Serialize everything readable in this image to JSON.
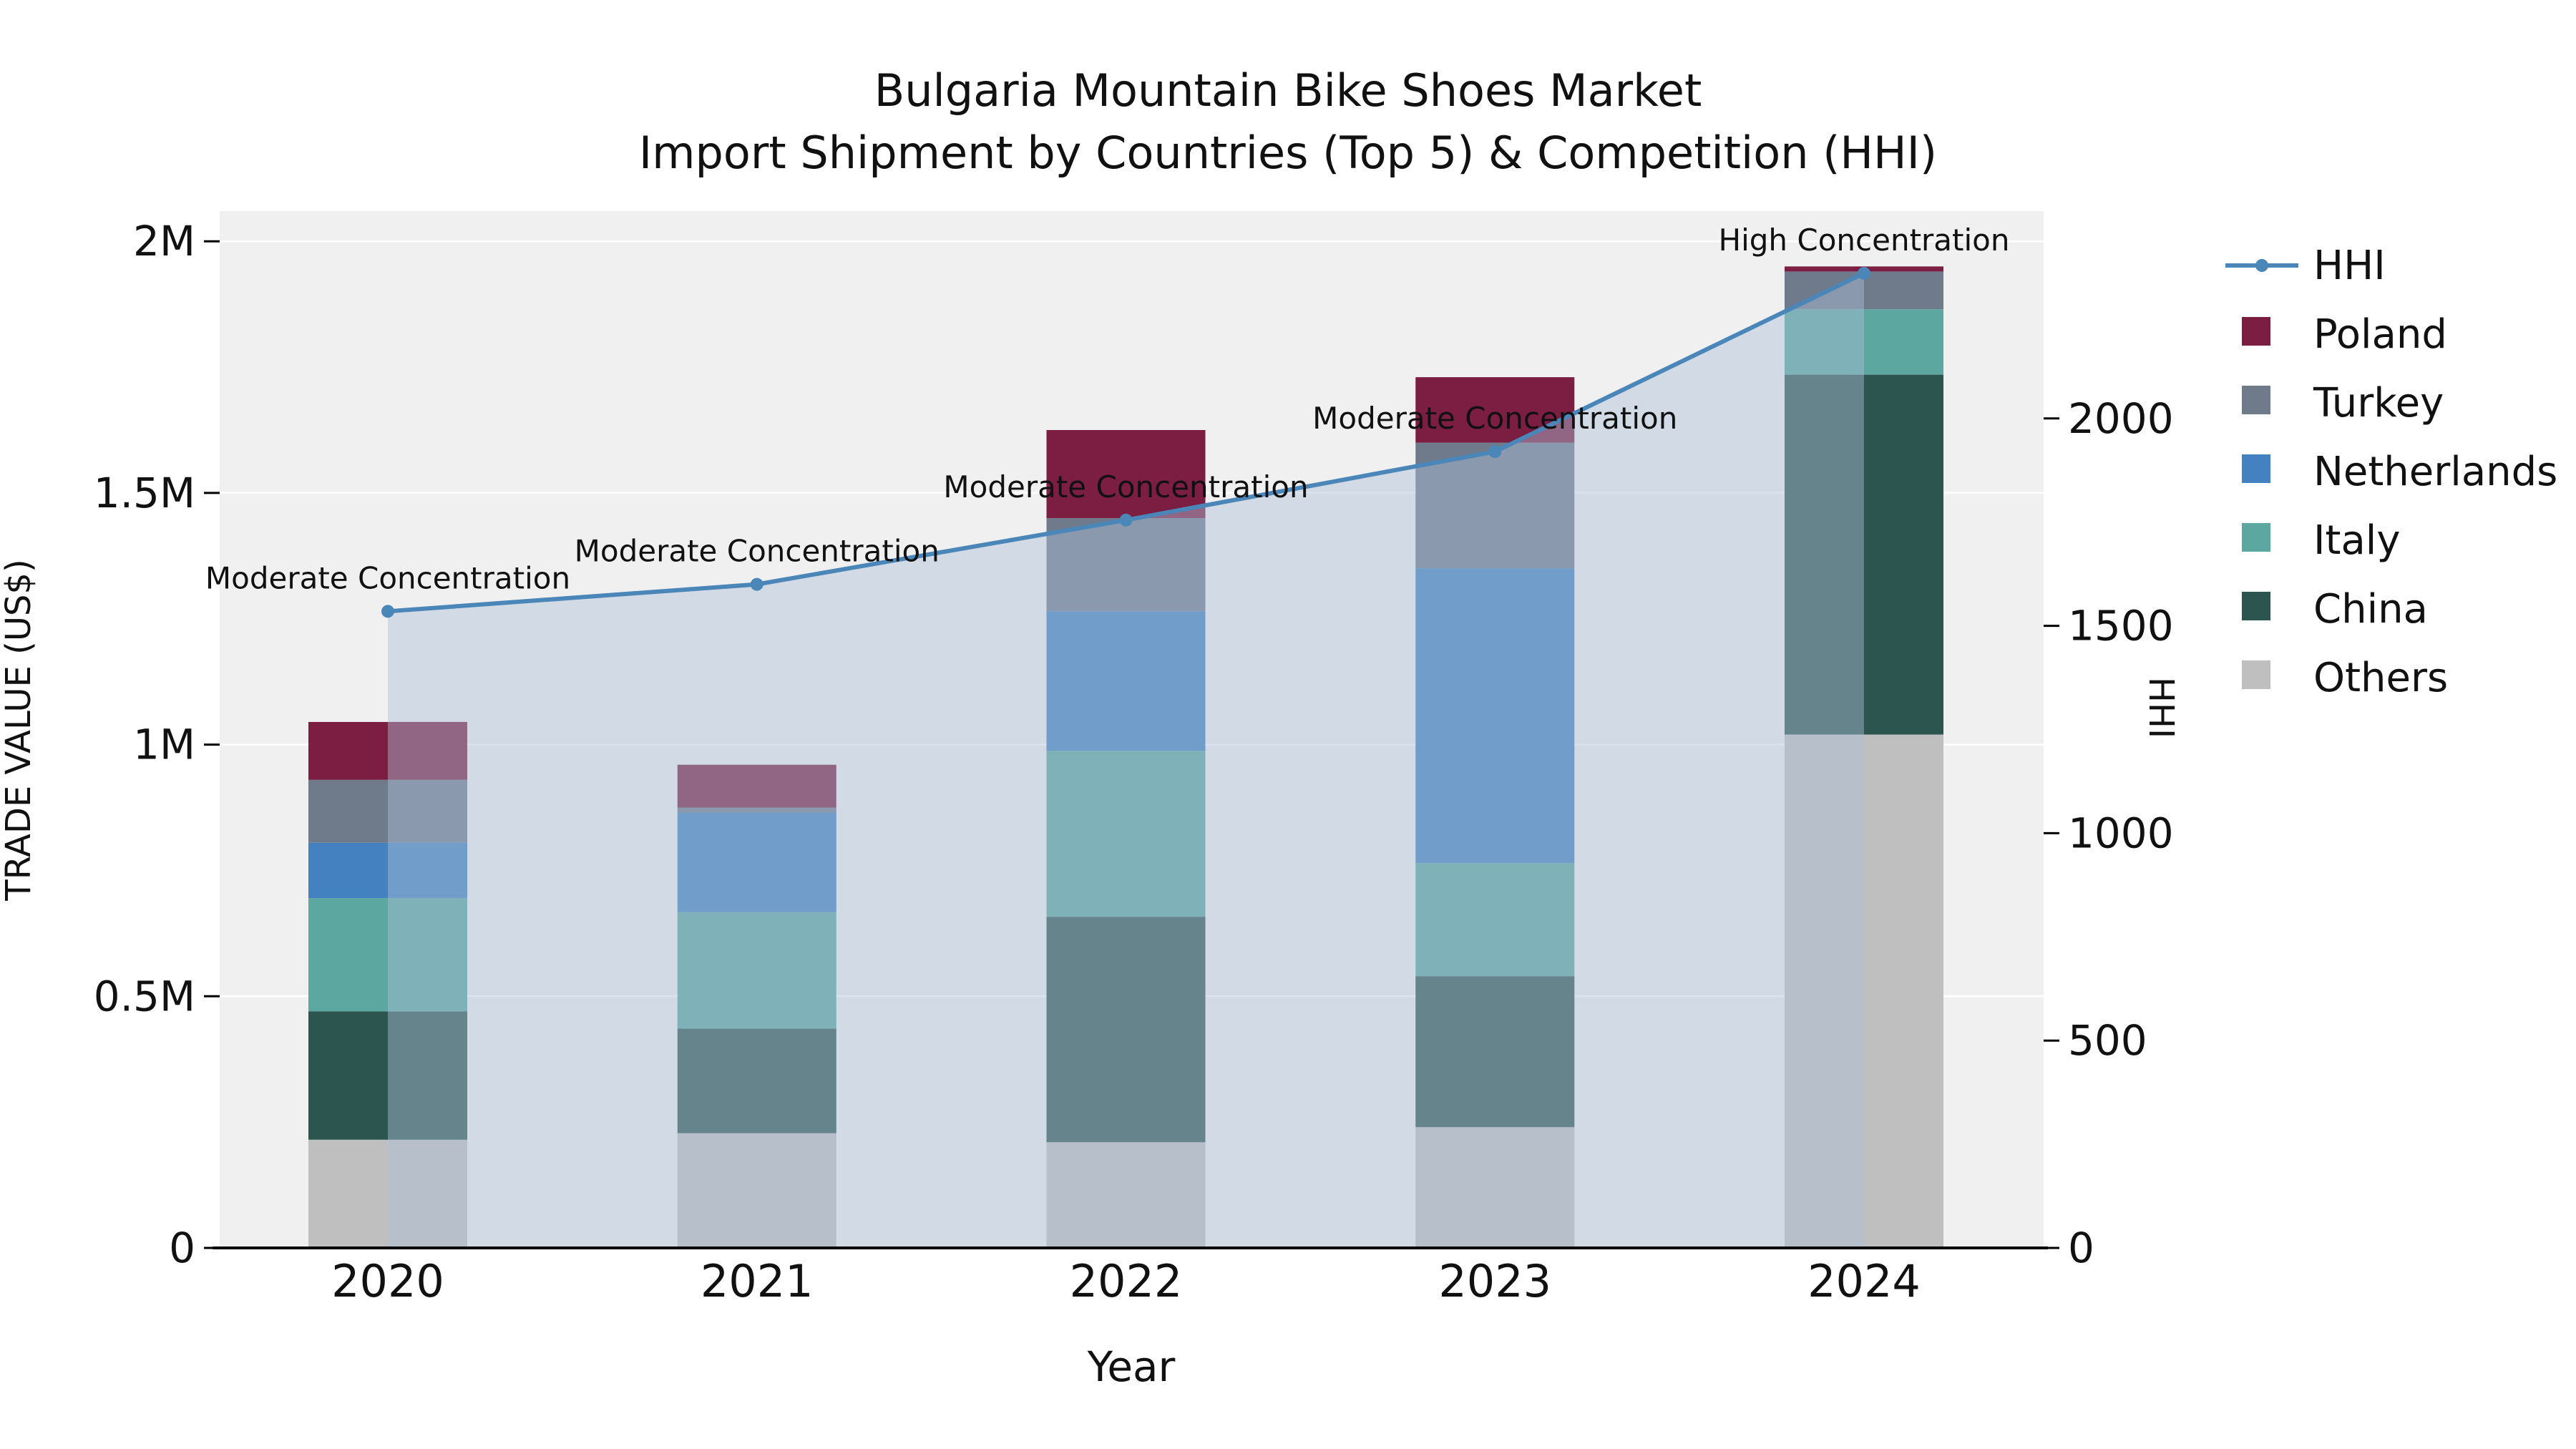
{
  "title": "Bulgaria Mountain Bike Shoes Market",
  "subtitle": "Import Shipment by Countries (Top 5) & Competition (HHI)",
  "chart_data": {
    "type": "bar",
    "subtype": "stacked bars (trade value by country) with overlaid HHI line and shaded area, dual y-axes",
    "categories": [
      "2020",
      "2021",
      "2022",
      "2023",
      "2024"
    ],
    "x_label": "Year",
    "y_left": {
      "label": "TRADE VALUE (US$)",
      "max": 2060000,
      "ticks": [
        {
          "value": 0,
          "label": "0"
        },
        {
          "value": 500000,
          "label": "0.5M"
        },
        {
          "value": 1000000,
          "label": "1M"
        },
        {
          "value": 1500000,
          "label": "1.5M"
        },
        {
          "value": 2000000,
          "label": "2M"
        }
      ]
    },
    "y_right": {
      "label": "HHI",
      "max": 2500,
      "ticks": [
        {
          "value": 0,
          "label": "0"
        },
        {
          "value": 500,
          "label": "500"
        },
        {
          "value": 1000,
          "label": "1000"
        },
        {
          "value": 1500,
          "label": "1500"
        },
        {
          "value": 2000,
          "label": "2000"
        }
      ]
    },
    "series": [
      {
        "name": "Others",
        "color": "#bfbfbf",
        "values": [
          215000,
          228000,
          210000,
          240000,
          1020000
        ]
      },
      {
        "name": "China",
        "color": "#2d554f",
        "values": [
          255000,
          208000,
          448000,
          300000,
          715000
        ]
      },
      {
        "name": "Italy",
        "color": "#5ca79f",
        "values": [
          225000,
          231000,
          330000,
          225000,
          130000
        ]
      },
      {
        "name": "Netherlands",
        "color": "#4381c0",
        "values": [
          110000,
          198000,
          277000,
          585000,
          0
        ]
      },
      {
        "name": "Turkey",
        "color": "#6f7b8b",
        "values": [
          125000,
          10000,
          185000,
          250000,
          75000
        ]
      },
      {
        "name": "Poland",
        "color": "#7b1e41",
        "values": [
          115000,
          85000,
          175000,
          130000,
          10000
        ]
      }
    ],
    "line_series": {
      "name": "HHI",
      "color": "#4a86b8",
      "area_color": "rgba(170,190,215,0.45)",
      "values": [
        1535,
        1600,
        1755,
        1920,
        2350
      ]
    },
    "annotations": [
      {
        "category": "2020",
        "label": "Moderate Concentration"
      },
      {
        "category": "2021",
        "label": "Moderate Concentration"
      },
      {
        "category": "2022",
        "label": "Moderate Concentration"
      },
      {
        "category": "2023",
        "label": "Moderate Concentration"
      },
      {
        "category": "2024",
        "label": "High Concentration"
      }
    ]
  },
  "legend": {
    "items": [
      {
        "label": "HHI",
        "swatch": "line",
        "color": "#4a86b8"
      },
      {
        "label": "Poland",
        "swatch": "square",
        "color": "#7b1e41"
      },
      {
        "label": "Turkey",
        "swatch": "square",
        "color": "#6f7b8b"
      },
      {
        "label": "Netherlands",
        "swatch": "square",
        "color": "#4381c0"
      },
      {
        "label": "Italy",
        "swatch": "square",
        "color": "#5ca79f"
      },
      {
        "label": "China",
        "swatch": "square",
        "color": "#2d554f"
      },
      {
        "label": "Others",
        "swatch": "square",
        "color": "#bfbfbf"
      }
    ]
  }
}
